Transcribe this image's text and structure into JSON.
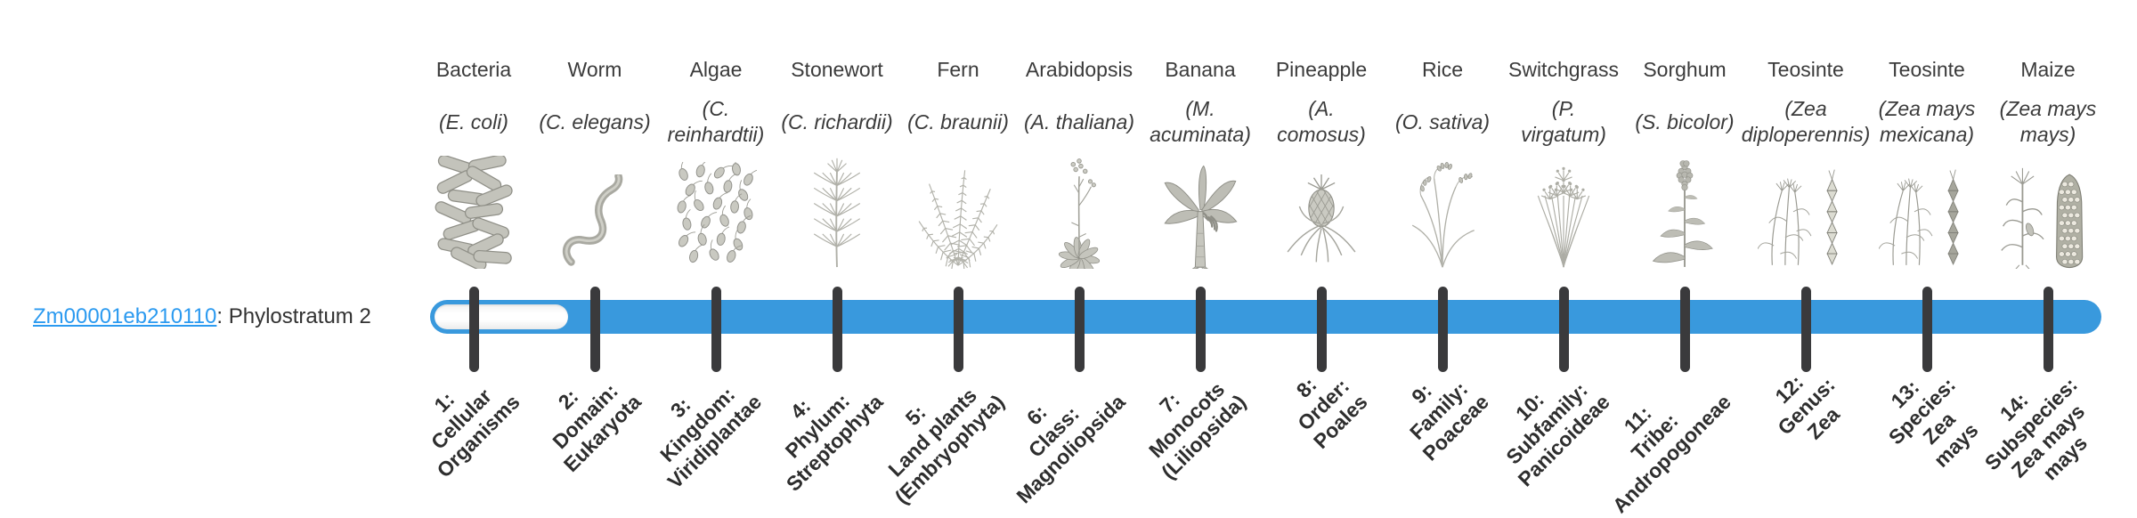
{
  "gene": {
    "id": "Zm00001eb210110",
    "suffix": ": Phylostratum 2"
  },
  "colors": {
    "bar_fill": "#3999dd",
    "bar_unfilled": "#ffffff",
    "tick": "#3a3a3c",
    "link": "#2b9af0"
  },
  "bar": {
    "phylostratum": 2,
    "unfilled_stage": 1,
    "filled_from_stage": 2,
    "total_stages": 14
  },
  "stages": [
    {
      "num": 1,
      "name": "Bacteria",
      "sci_lines": [
        "(E. coli)"
      ],
      "rank_lines": [
        "1:",
        "Cellular",
        "Organisms"
      ],
      "icon": "bacteria-icon",
      "filled": false
    },
    {
      "num": 2,
      "name": "Worm",
      "sci_lines": [
        "(C. elegans)"
      ],
      "rank_lines": [
        "2:",
        "Domain:",
        "Eukaryota"
      ],
      "icon": "worm-icon",
      "filled": true
    },
    {
      "num": 3,
      "name": "Algae",
      "sci_lines": [
        "(C.",
        "reinhardtii)"
      ],
      "rank_lines": [
        "3:",
        "Kingdom:",
        "Viridiplantae"
      ],
      "icon": "algae-icon",
      "filled": true
    },
    {
      "num": 4,
      "name": "Stonewort",
      "sci_lines": [
        "(C. richardii)"
      ],
      "rank_lines": [
        "4:",
        "Phylum:",
        "Streptophyta"
      ],
      "icon": "stonewort-icon",
      "filled": true
    },
    {
      "num": 5,
      "name": "Fern",
      "sci_lines": [
        "(C. braunii)"
      ],
      "rank_lines": [
        "5:",
        "Land plants",
        "(Embryophyta)"
      ],
      "icon": "fern-icon",
      "filled": true
    },
    {
      "num": 6,
      "name": "Arabidopsis",
      "sci_lines": [
        "(A. thaliana)"
      ],
      "rank_lines": [
        "6:",
        "Class:",
        "Magnoliopsida"
      ],
      "icon": "arabidopsis-icon",
      "filled": true
    },
    {
      "num": 7,
      "name": "Banana",
      "sci_lines": [
        "(M.",
        "acuminata)"
      ],
      "rank_lines": [
        "7:",
        "Monocots",
        "(Liliopsida)"
      ],
      "icon": "banana-icon",
      "filled": true
    },
    {
      "num": 8,
      "name": "Pineapple",
      "sci_lines": [
        "(A.",
        "comosus)"
      ],
      "rank_lines": [
        "8:",
        "Order:",
        "Poales"
      ],
      "icon": "pineapple-icon",
      "filled": true
    },
    {
      "num": 9,
      "name": "Rice",
      "sci_lines": [
        "(O. sativa)"
      ],
      "rank_lines": [
        "9:",
        "Family:",
        "Poaceae"
      ],
      "icon": "rice-icon",
      "filled": true
    },
    {
      "num": 10,
      "name": "Switchgrass",
      "sci_lines": [
        "(P.",
        "virgatum)"
      ],
      "rank_lines": [
        "10:",
        "Subfamily:",
        "Panicoideae"
      ],
      "icon": "switchgrass-icon",
      "filled": true
    },
    {
      "num": 11,
      "name": "Sorghum",
      "sci_lines": [
        "(S. bicolor)"
      ],
      "rank_lines": [
        "11:",
        "Tribe:",
        "Andropogoneae"
      ],
      "icon": "sorghum-icon",
      "filled": true
    },
    {
      "num": 12,
      "name": "Teosinte",
      "sci_lines": [
        "(Zea",
        "diploperennis)"
      ],
      "rank_lines": [
        "12:",
        "Genus:",
        "Zea"
      ],
      "icon": "teosinte-diploperennis-icon",
      "filled": true
    },
    {
      "num": 13,
      "name": "Teosinte",
      "sci_lines": [
        "(Zea mays",
        "mexicana)"
      ],
      "rank_lines": [
        "13:",
        "Species:",
        "Zea",
        "mays"
      ],
      "icon": "teosinte-mexicana-icon",
      "filled": true
    },
    {
      "num": 14,
      "name": "Maize",
      "sci_lines": [
        "(Zea mays",
        "mays)"
      ],
      "rank_lines": [
        "14:",
        "Subspecies:",
        "Zea mays",
        "mays"
      ],
      "icon": "maize-icon",
      "filled": true
    }
  ]
}
